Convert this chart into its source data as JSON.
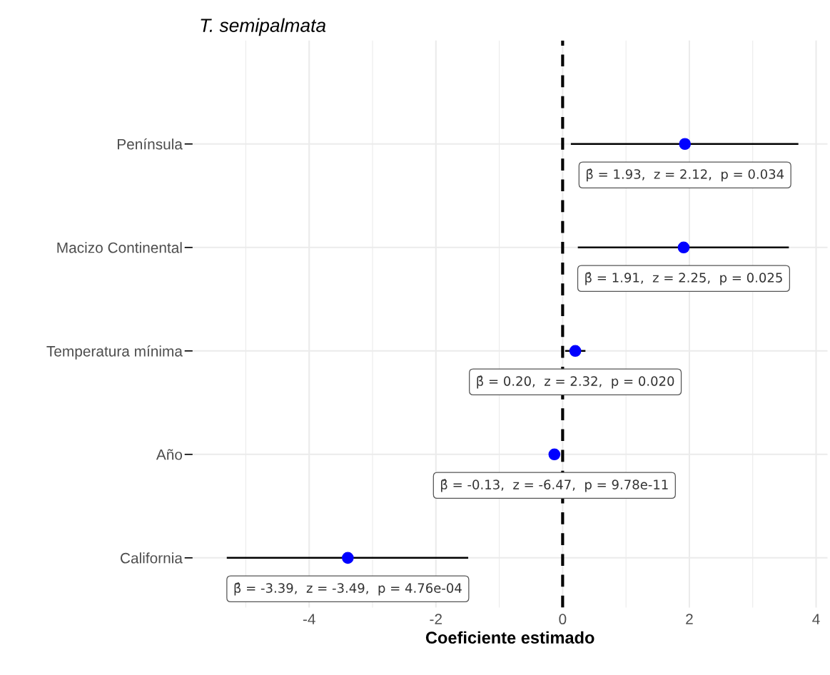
{
  "chart_data": {
    "type": "scatter",
    "orientation": "horizontal",
    "title": "T. semipalmata",
    "xlabel": "Coeficiente estimado",
    "categories": [
      "Península",
      "Macizo Continental",
      "Temperatura mínima",
      "Año",
      "California"
    ],
    "series": [
      {
        "color": "#0000ff",
        "values": [
          1.93,
          1.91,
          0.2,
          -0.13,
          -3.39
        ],
        "errors": [
          [
            0.13,
            3.72
          ],
          [
            0.24,
            3.57
          ],
          [
            0.04,
            0.36
          ],
          null,
          [
            -5.3,
            -1.49
          ]
        ]
      }
    ],
    "marker": "circle",
    "xlim": [
      -5.84,
      4.18
    ],
    "xticks": [
      -4,
      -2,
      0,
      2,
      4
    ],
    "grid": true,
    "ref_lines": [
      {
        "axis": "x",
        "value": 0,
        "line_style": "dashed",
        "color": "#000000"
      }
    ],
    "annotations": [
      {
        "text": "β̂ = 1.93,  z = 2.12,  p = 0.034",
        "x": 1.93,
        "y": "Península"
      },
      {
        "text": "β̂ = 1.91,  z = 2.25,  p = 0.025",
        "x": 1.91,
        "y": "Macizo Continental"
      },
      {
        "text": "β̂ = 0.20,  z = 2.32,  p = 0.020",
        "x": 0.2,
        "y": "Temperatura mínima"
      },
      {
        "text": "β̂ = -0.13,  z = -6.47,  p = 9.78e-11",
        "x": -0.13,
        "y": "Año"
      },
      {
        "text": "β̂ = -3.39,  z = -3.49,  p = 4.76e-04",
        "x": -3.39,
        "y": "California"
      }
    ]
  }
}
